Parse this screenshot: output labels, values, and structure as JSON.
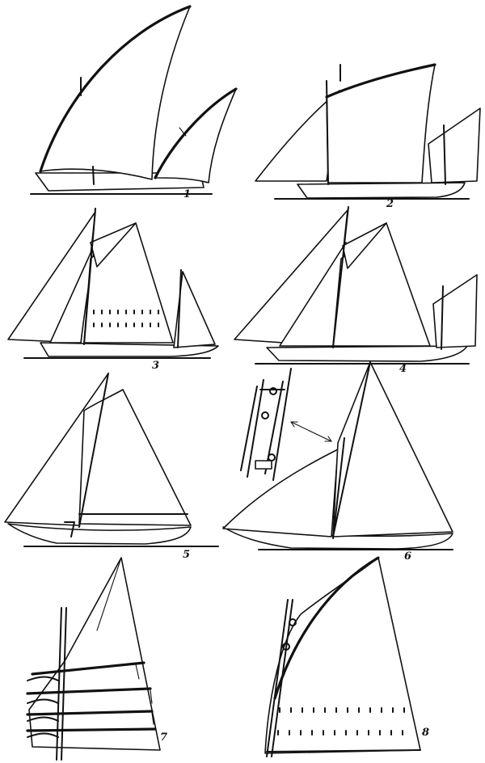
{
  "figures": [
    {
      "id": "1",
      "label": "1"
    },
    {
      "id": "2",
      "label": "2"
    },
    {
      "id": "3",
      "label": "3"
    },
    {
      "id": "4",
      "label": "4"
    },
    {
      "id": "5",
      "label": "5"
    },
    {
      "id": "6",
      "label": "6"
    },
    {
      "id": "7",
      "label": "7"
    },
    {
      "id": "8",
      "label": "8"
    }
  ],
  "colors": {
    "ink": "#111111",
    "paper": "#ffffff"
  }
}
